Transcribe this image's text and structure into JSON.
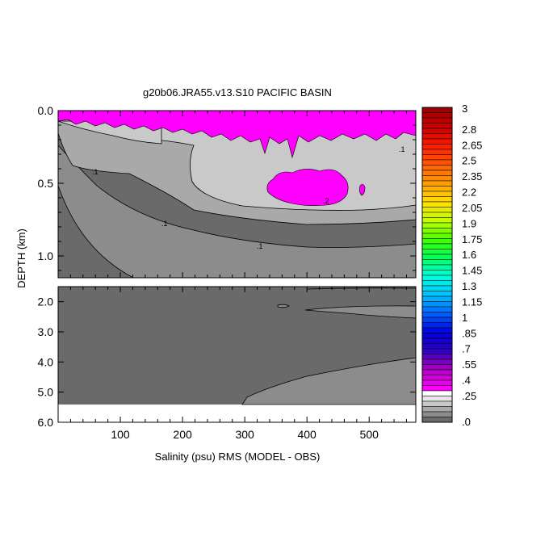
{
  "chart_data": {
    "type": "heatmap",
    "title": "g20b06.JRA55.v13.S10 PACIFIC BASIN",
    "xlabel": "Salinity (psu) RMS (MODEL - OBS)",
    "ylabel": "DEPTH (km)",
    "xlim": [
      0,
      575
    ],
    "x_ticks": [
      100,
      200,
      300,
      400,
      500
    ],
    "x_tick_labels": [
      "100",
      "200",
      "300",
      "400",
      "500"
    ],
    "upper_panel": {
      "ylim": [
        0.0,
        1.15
      ],
      "y_ticks": [
        0.0,
        0.5,
        1.0
      ],
      "y_tick_labels": [
        "0.0",
        "0.5",
        "1.0"
      ],
      "contour_labels": [
        ".1",
        ".1",
        ".1",
        ".1",
        ".2"
      ]
    },
    "lower_panel": {
      "ylim": [
        1.5,
        6.0
      ],
      "y_ticks": [
        2.0,
        3.0,
        4.0,
        5.0,
        6.0
      ],
      "y_tick_labels": [
        "2.0",
        "3.0",
        "4.0",
        "5.0",
        "6.0"
      ]
    },
    "colorbar": {
      "labels": [
        "3",
        "2.8",
        "2.65",
        "2.5",
        "2.35",
        "2.2",
        "2.05",
        "1.9",
        "1.75",
        "1.6",
        "1.45",
        "1.3",
        "1.15",
        "1",
        ".85",
        ".7",
        ".55",
        ".4",
        ".25",
        ".0"
      ],
      "levels": [
        0.0,
        0.25,
        0.4,
        0.55,
        0.7,
        0.85,
        1.0,
        1.15,
        1.3,
        1.45,
        1.6,
        1.75,
        1.9,
        2.05,
        2.2,
        2.35,
        2.5,
        2.65,
        2.8,
        3.0
      ],
      "low_colors": [
        "#6a6a6a",
        "#8c8c8c",
        "#a9a9a9",
        "#c9c9c9",
        "#e6e6e6",
        "#ffffff"
      ],
      "high_color_ramp": [
        "#ff00ff",
        "#b000c0",
        "#3000c0",
        "#0000e0",
        "#0060ff",
        "#00c0ff",
        "#00ffe0",
        "#00ff60",
        "#40ff00",
        "#c0ff00",
        "#ffe000",
        "#ffa000",
        "#ff6000",
        "#ff2000",
        "#d00000",
        "#a00000"
      ]
    }
  }
}
